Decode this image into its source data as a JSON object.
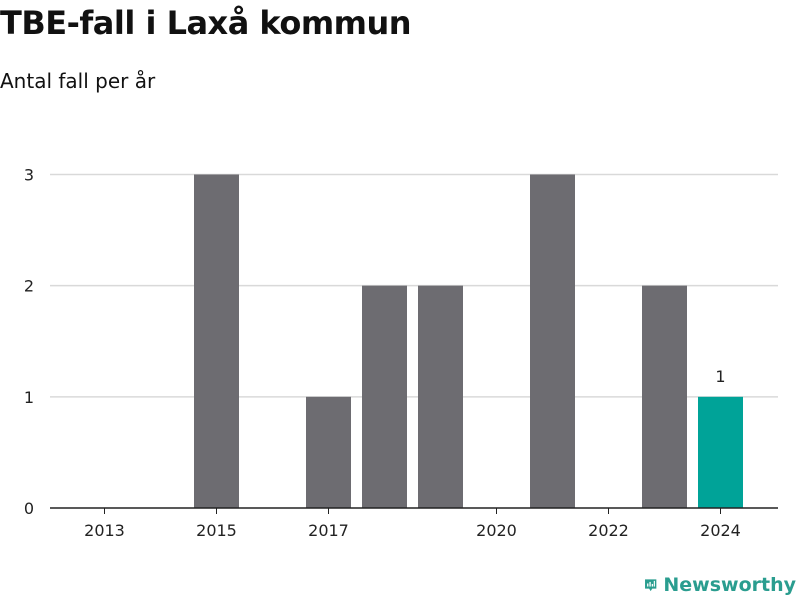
{
  "header": {
    "title": "TBE-fall i Laxå kommun",
    "subtitle": "Antal fall per år"
  },
  "brand": {
    "name": "Newsworthy",
    "icon": "newsworthy-logo-icon",
    "color": "#2a9d8f"
  },
  "colors": {
    "bar": "#6d6c71",
    "highlight": "#00a398",
    "grid": "#d9d9d9",
    "axis": "#222222"
  },
  "chart_data": {
    "type": "bar",
    "title": "TBE-fall i Laxå kommun",
    "subtitle": "Antal fall per år",
    "xlabel": "",
    "ylabel": "",
    "x": [
      2013,
      2014,
      2015,
      2016,
      2017,
      2018,
      2019,
      2020,
      2021,
      2022,
      2023,
      2024
    ],
    "values": [
      0,
      0,
      3,
      0,
      1,
      2,
      2,
      0,
      3,
      0,
      2,
      1
    ],
    "xticks": [
      2013,
      2015,
      2017,
      2020,
      2022,
      2024
    ],
    "yticks": [
      0,
      1,
      2,
      3
    ],
    "ylim": [
      0,
      3.4
    ],
    "grid": true,
    "highlight": {
      "x": 2024,
      "label": "1"
    }
  }
}
